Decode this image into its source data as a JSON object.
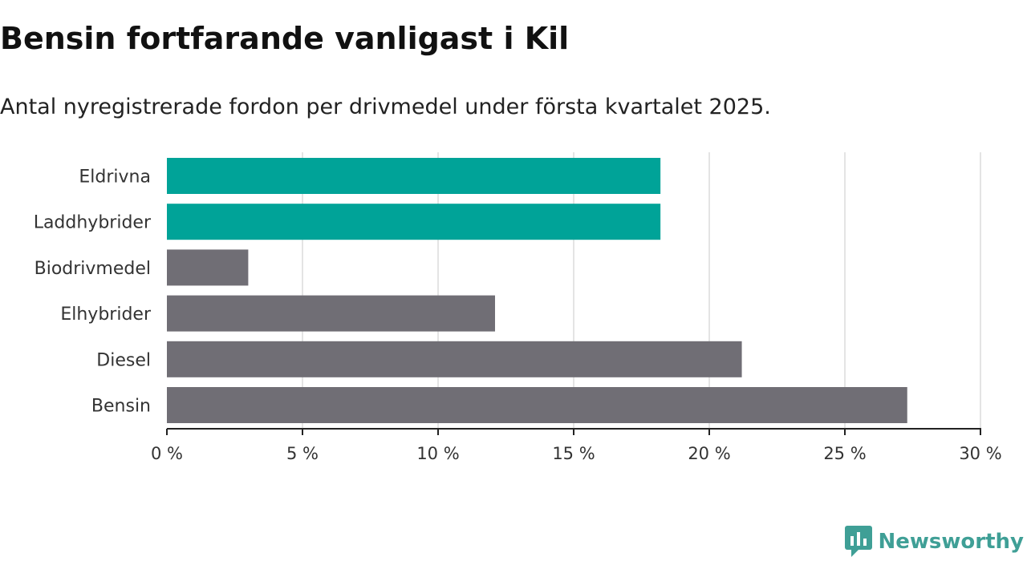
{
  "header": {
    "title": "Bensin fortfarande vanligast i Kil",
    "subtitle": "Antal nyregistrerade fordon per drivmedel under första kvartalet 2025."
  },
  "brand": {
    "name": "Newsworthy",
    "icon": "newsworthy-logo-icon",
    "color": "#3f9f96"
  },
  "colors": {
    "highlight": "#00a398",
    "default": "#706e75",
    "grid": "#dcdcdc",
    "axis": "#222222"
  },
  "chart_data": {
    "type": "bar",
    "orientation": "horizontal",
    "categories": [
      "Eldrivna",
      "Laddhybrider",
      "Biodrivmedel",
      "Elhybrider",
      "Diesel",
      "Bensin"
    ],
    "values": [
      18.2,
      18.2,
      3.0,
      12.1,
      21.2,
      27.3
    ],
    "highlighted": [
      true,
      true,
      false,
      false,
      false,
      false
    ],
    "xlim": [
      0,
      30
    ],
    "xticks": [
      0,
      5,
      10,
      15,
      20,
      25,
      30
    ],
    "xtick_labels": [
      "0 %",
      "5 %",
      "10 %",
      "15 %",
      "20 %",
      "25 %",
      "30 %"
    ],
    "grid": true
  }
}
